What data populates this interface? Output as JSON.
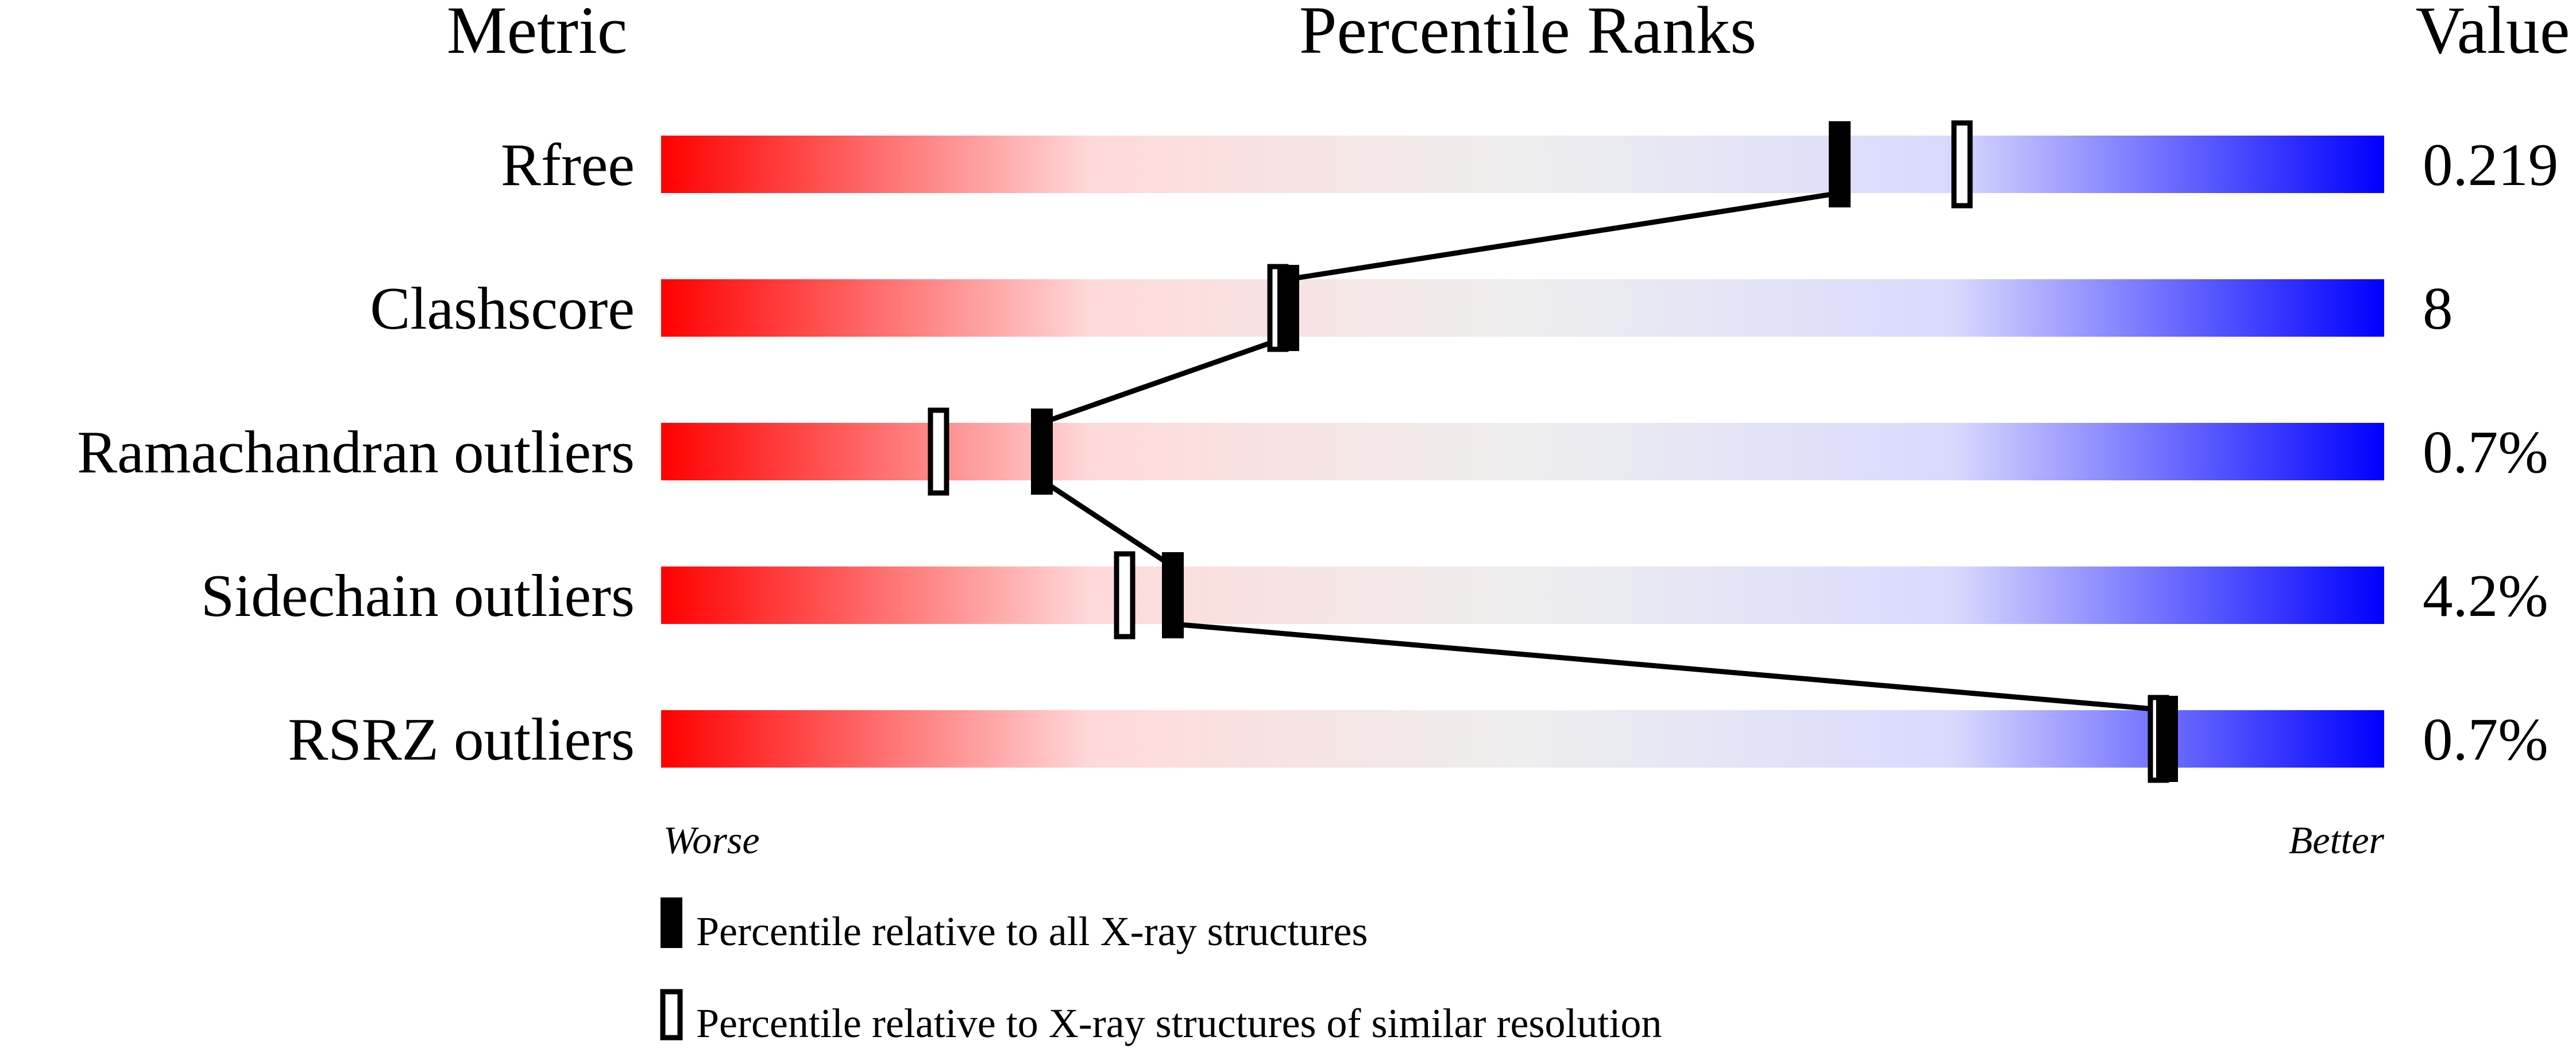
{
  "chart_data": {
    "type": "percentile-rank-bars",
    "headers": {
      "metric": "Metric",
      "ranks": "Percentile Ranks",
      "value": "Value"
    },
    "xlim": [
      0,
      100
    ],
    "scale_labels": {
      "left": "Worse",
      "right": "Better"
    },
    "gradient_colors": [
      "#ff0000",
      "#ffd9d9",
      "#eeeeee",
      "#d9d9ff",
      "#0000ff"
    ],
    "rows": [
      {
        "metric": "Rfree",
        "value": "0.219",
        "percentile_all": 68.4,
        "percentile_similar": 75.5
      },
      {
        "metric": "Clashscore",
        "value": "8",
        "percentile_all": 36.4,
        "percentile_similar": 35.8
      },
      {
        "metric": "Ramachandran outliers",
        "value": "0.7%",
        "percentile_all": 22.1,
        "percentile_similar": 16.1
      },
      {
        "metric": "Sidechain outliers",
        "value": "4.2%",
        "percentile_all": 29.7,
        "percentile_similar": 26.9
      },
      {
        "metric": "RSRZ outliers",
        "value": "0.7%",
        "percentile_all": 87.4,
        "percentile_similar": 86.9
      }
    ],
    "legend": [
      {
        "marker": "filled",
        "label": "Percentile relative to all X-ray structures"
      },
      {
        "marker": "open",
        "label": "Percentile relative to X-ray structures of similar resolution"
      }
    ]
  }
}
